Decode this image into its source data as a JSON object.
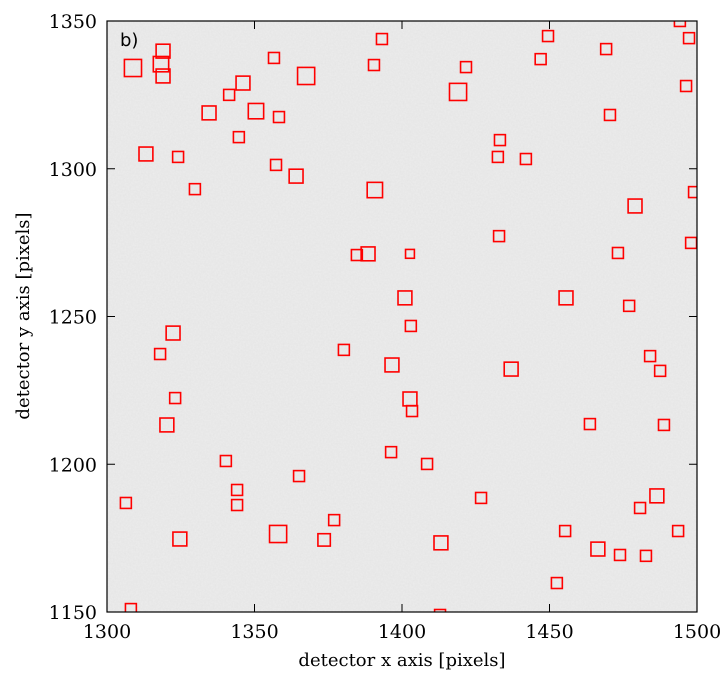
{
  "chart_data": {
    "type": "scatter",
    "marker": "square",
    "annotation": "b)",
    "xlabel": "detector x axis [pixels]",
    "ylabel": "detector y axis [pixels]",
    "color": "#ff0000",
    "xlim": [
      1300,
      1500
    ],
    "ylim": [
      1150,
      1350
    ],
    "xticks": [
      1300,
      1350,
      1400,
      1450,
      1500
    ],
    "yticks": [
      1150,
      1200,
      1250,
      1300,
      1350
    ],
    "x": [
      1308.8,
      1319,
      1318.3,
      1319,
      1341.4,
      1346.1,
      1334.6,
      1350.5,
      1356.6,
      1358.3,
      1367.5,
      1344.7,
      1313.2,
      1324.1,
      1329.8,
      1357.3,
      1364.1,
      1390.8,
      1390.5,
      1393.2,
      1421.7,
      1419,
      1447,
      1449.5,
      1469.2,
      1494.2,
      1497.3,
      1496.3,
      1470.5,
      1433.2,
      1432.5,
      1442,
      1479,
      1499,
      1498,
      1432.9,
      1384.7,
      1388.5,
      1402.7,
      1473.2,
      1401,
      1403,
      1455.6,
      1477,
      1322.4,
      1318,
      1380.3,
      1396.6,
      1437,
      1484.1,
      1487.5,
      1323.1,
      1320.3,
      1402.7,
      1403.4,
      1463.7,
      1488.8,
      1340.3,
      1396.3,
      1408.5,
      1365.1,
      1344.1,
      1344.1,
      1306.4,
      1426.8,
      1486.4,
      1480.7,
      1377,
      1358,
      1373.6,
      1324.7,
      1413.2,
      1455.3,
      1466.4,
      1473.9,
      1482.7,
      1493.6,
      1452.5,
      1308.1,
      1412.9
    ],
    "y": [
      1334.1,
      1339.8,
      1335.4,
      1331.4,
      1325,
      1329,
      1318.9,
      1319.5,
      1337.5,
      1317.5,
      1331.4,
      1310.7,
      1305,
      1304,
      1293.1,
      1301.3,
      1297.5,
      1292.8,
      1335.1,
      1343.9,
      1334.4,
      1326,
      1337.1,
      1344.9,
      1340.5,
      1350,
      1344.2,
      1328,
      1318.2,
      1309.7,
      1304,
      1303.3,
      1287.4,
      1292.1,
      1274.9,
      1277.2,
      1270.8,
      1271.2,
      1271.2,
      1271.5,
      1256.3,
      1246.8,
      1256.3,
      1253.6,
      1244.4,
      1237.3,
      1238.7,
      1233.6,
      1232.2,
      1236.6,
      1231.6,
      1222.4,
      1213.3,
      1222.1,
      1218,
      1213.6,
      1213.3,
      1201.1,
      1204.1,
      1200.1,
      1196,
      1191.3,
      1186.2,
      1186.9,
      1188.6,
      1189.3,
      1185.2,
      1181.1,
      1176.4,
      1174.4,
      1174.7,
      1173.4,
      1177.4,
      1171.3,
      1169.3,
      1169,
      1177.4,
      1159.8,
      1151,
      1149
    ],
    "sizes": [
      5.8,
      4.7,
      5.2,
      4.7,
      3.7,
      4.7,
      4.7,
      5.2,
      3.7,
      3.7,
      5.8,
      3.7,
      4.7,
      3.7,
      3.7,
      3.7,
      4.7,
      5.2,
      3.7,
      3.7,
      3.7,
      5.8,
      3.7,
      3.7,
      3.7,
      3.7,
      3.7,
      3.7,
      3.7,
      3.7,
      3.7,
      3.7,
      4.7,
      3.7,
      3.7,
      3.7,
      3.7,
      4.7,
      3,
      3.7,
      4.7,
      3.7,
      4.7,
      3.7,
      4.7,
      3.7,
      3.7,
      4.7,
      4.7,
      3.7,
      3.7,
      3.7,
      4.7,
      4.7,
      3.7,
      3.7,
      3.7,
      3.7,
      3.7,
      3.7,
      3.7,
      3.7,
      3.7,
      3.7,
      3.7,
      4.7,
      3.7,
      3.7,
      5.8,
      4.2,
      4.7,
      4.7,
      3.7,
      4.7,
      3.7,
      3.7,
      3.7,
      3.7,
      3.7,
      3.7
    ]
  }
}
